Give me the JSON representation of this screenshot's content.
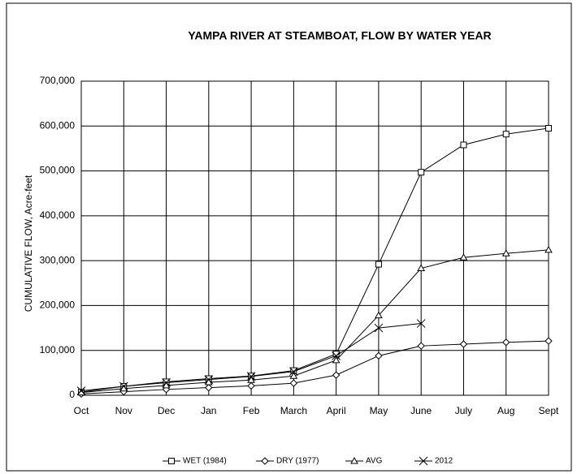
{
  "chart_data": {
    "type": "line",
    "title": "YAMPA RIVER AT STEAMBOAT, FLOW BY WATER YEAR",
    "y_label": "CUMULATIVE FLOW, Acre-feet",
    "categories": [
      "Oct",
      "Nov",
      "Dec",
      "Jan",
      "Feb",
      "March",
      "April",
      "May",
      "June",
      "July",
      "Aug",
      "Sept"
    ],
    "series": [
      {
        "name": "WET (1984)",
        "color": "#000000",
        "marker": "square",
        "values": [
          7000,
          20000,
          30000,
          37000,
          43000,
          55000,
          92000,
          292000,
          497000,
          558000,
          582000,
          595000
        ]
      },
      {
        "name": "DRY (1977)",
        "color": "#000000",
        "marker": "diamond",
        "values": [
          3000,
          8000,
          13000,
          17000,
          21000,
          27000,
          45000,
          88000,
          110000,
          114000,
          118000,
          121000
        ]
      },
      {
        "name": "AVG",
        "color": "#000000",
        "marker": "triangle",
        "values": [
          6000,
          15000,
          22000,
          29000,
          34000,
          43000,
          78000,
          178000,
          283000,
          307000,
          316000,
          324000
        ]
      },
      {
        "name": "2012",
        "color": "#000000",
        "marker": "x",
        "values": [
          10000,
          20000,
          28000,
          35000,
          42000,
          53000,
          88000,
          150000,
          160000,
          null,
          null,
          null
        ]
      }
    ],
    "ylim": [
      0,
      700000
    ],
    "yticks": [
      0,
      {
        "value": 100000,
        "label": "100,000"
      },
      {
        "value": 200000,
        "label": "200,000"
      },
      {
        "value": 300000,
        "label": "300,000"
      },
      {
        "value": 400000,
        "label": "400,000"
      },
      {
        "value": 500000,
        "label": "500,000"
      },
      {
        "value": 600000,
        "label": "600,000"
      },
      {
        "value": 700000,
        "label": "700,000"
      }
    ],
    "grid": true,
    "legend": "bottom"
  }
}
